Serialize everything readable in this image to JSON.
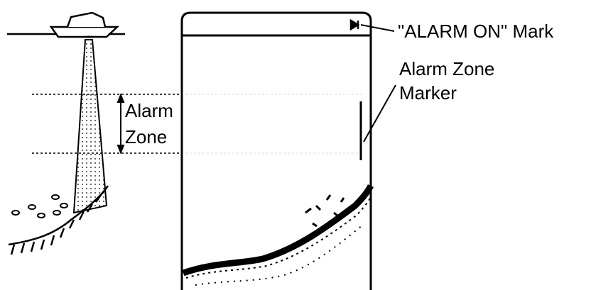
{
  "labels": {
    "alarm_on_mark": "\"ALARM ON\" Mark",
    "alarm_zone_marker": [
      "Alarm Zone",
      "Marker"
    ],
    "alarm_zone": [
      "Alarm",
      "Zone"
    ]
  }
}
